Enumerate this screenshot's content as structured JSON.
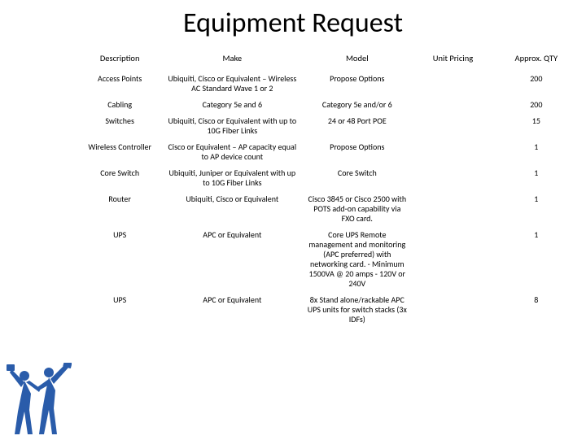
{
  "title": "Equipment Request",
  "headers": {
    "desc": "Description",
    "make": "Make",
    "model": "Model",
    "price": "Unit Pricing",
    "qty": "Approx. QTY"
  },
  "rows": [
    {
      "desc": "Access Points",
      "make": "Ubiquiti, Cisco or Equivalent – Wireless AC Standard Wave 1 or 2",
      "model": "Propose Options",
      "price": "",
      "qty": "200"
    },
    {
      "desc": "Cabling",
      "make": "Category 5e and 6",
      "model": "Category 5e and/or 6",
      "price": "",
      "qty": "200"
    },
    {
      "desc": "Switches",
      "make": "Ubiquiti, Cisco or Equivalent with up to 10G Fiber Links",
      "model": "24 or 48 Port POE",
      "price": "",
      "qty": "15"
    },
    {
      "desc": "Wireless Controller",
      "make": "Cisco or Equivalent – AP capacity equal to AP device count",
      "model": "Propose Options",
      "price": "",
      "qty": "1"
    },
    {
      "desc": "Core Switch",
      "make": "Ubiquiti, Juniper or Equivalent with up to 10G Fiber Links",
      "model": "Core Switch",
      "price": "",
      "qty": "1"
    },
    {
      "desc": "Router",
      "make": "Ubiquiti, Cisco or Equivalent",
      "model": "Cisco 3845 or Cisco 2500 with POTS add-on capability via FXO card.",
      "price": "",
      "qty": "1"
    },
    {
      "desc": "UPS",
      "make": "APC or Equivalent",
      "model": "Core UPS Remote management and monitoring (APC preferred) with networking card. - Minimum 1500VA @ 20 amps - 120V or 240V",
      "price": "",
      "qty": "1"
    },
    {
      "desc": "UPS",
      "make": "APC or Equivalent",
      "model": "8x Stand alone/rackable APC UPS units for switch stacks (3x IDFs)",
      "price": "",
      "qty": "8"
    }
  ],
  "colors": {
    "background": "#ffffff",
    "text": "#000000",
    "iconFill": "#2a5caa"
  }
}
